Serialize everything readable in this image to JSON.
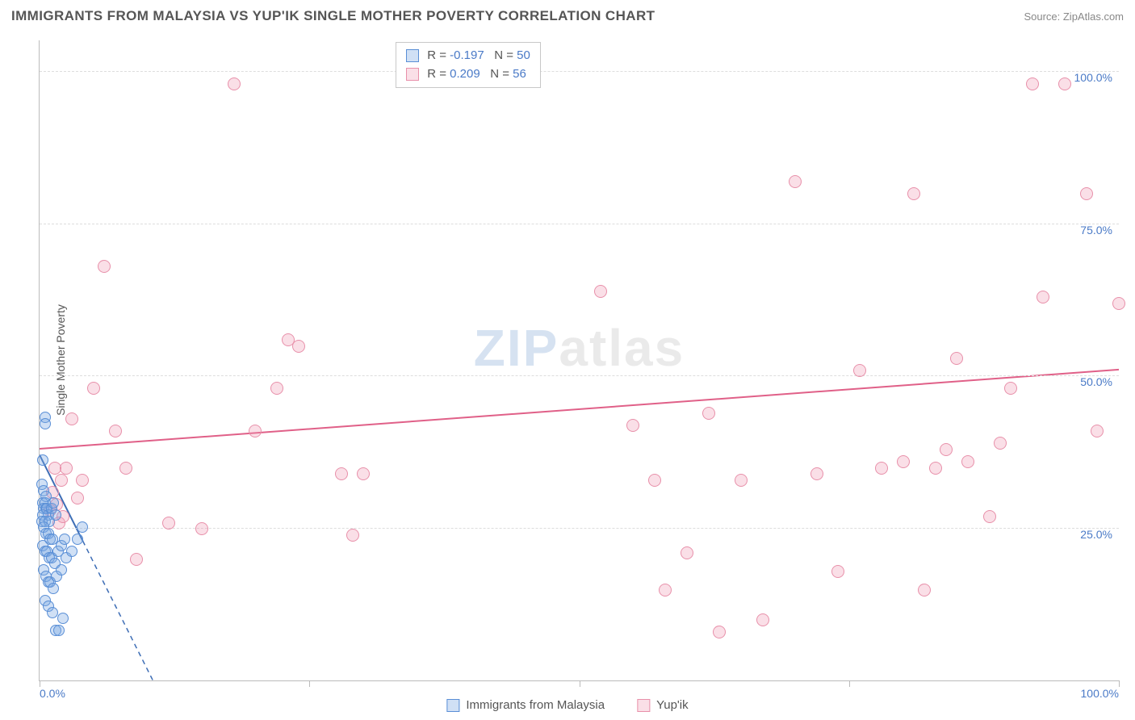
{
  "header": {
    "title": "IMMIGRANTS FROM MALAYSIA VS YUP'IK SINGLE MOTHER POVERTY CORRELATION CHART",
    "source": "Source: ZipAtlas.com"
  },
  "ylabel": "Single Mother Poverty",
  "watermark": {
    "part1": "ZIP",
    "part2": "atlas"
  },
  "axes": {
    "xlim": [
      0,
      100
    ],
    "ylim": [
      0,
      105
    ],
    "xtick_positions": [
      0,
      25,
      50,
      75,
      100
    ],
    "xtick_labels_shown": {
      "0": "0.0%",
      "100": "100.0%"
    },
    "ytick_positions": [
      25,
      50,
      75,
      100
    ],
    "ytick_labels": [
      "25.0%",
      "50.0%",
      "75.0%",
      "100.0%"
    ],
    "grid_color": "#dddddd",
    "axis_color": "#bbbbbb"
  },
  "series": {
    "malaysia": {
      "label": "Immigrants from Malaysia",
      "fill_color": "rgba(120,165,225,0.35)",
      "stroke_color": "#5a8fd6",
      "marker_radius": 7,
      "R": "-0.197",
      "N": "50",
      "trend": {
        "x1": 0,
        "y1": 37,
        "x2": 10.5,
        "y2": 0,
        "color": "#3d6db5",
        "width": 2,
        "dash_extension": true
      },
      "points": [
        [
          0.5,
          45
        ],
        [
          0.5,
          44
        ],
        [
          0.3,
          38
        ],
        [
          0.2,
          34
        ],
        [
          0.4,
          33
        ],
        [
          0.6,
          32
        ],
        [
          0.3,
          31
        ],
        [
          0.5,
          31
        ],
        [
          0.4,
          30
        ],
        [
          0.6,
          30
        ],
        [
          0.7,
          30
        ],
        [
          0.8,
          29
        ],
        [
          0.3,
          29
        ],
        [
          0.2,
          28
        ],
        [
          0.5,
          28
        ],
        [
          0.9,
          28
        ],
        [
          1.1,
          30
        ],
        [
          1.3,
          31
        ],
        [
          1.5,
          29
        ],
        [
          0.4,
          27
        ],
        [
          0.6,
          26
        ],
        [
          0.8,
          26
        ],
        [
          1.0,
          25
        ],
        [
          1.2,
          25
        ],
        [
          0.3,
          24
        ],
        [
          0.5,
          23
        ],
        [
          0.7,
          23
        ],
        [
          0.9,
          22
        ],
        [
          1.1,
          22
        ],
        [
          1.4,
          21
        ],
        [
          1.7,
          23
        ],
        [
          2.0,
          24
        ],
        [
          2.3,
          25
        ],
        [
          0.4,
          20
        ],
        [
          0.6,
          19
        ],
        [
          0.8,
          18
        ],
        [
          1.0,
          18
        ],
        [
          1.3,
          17
        ],
        [
          1.6,
          19
        ],
        [
          2.0,
          20
        ],
        [
          2.5,
          22
        ],
        [
          3.0,
          23
        ],
        [
          3.5,
          25
        ],
        [
          4.0,
          27
        ],
        [
          0.5,
          15
        ],
        [
          0.8,
          14
        ],
        [
          1.2,
          13
        ],
        [
          1.5,
          10
        ],
        [
          1.8,
          10
        ],
        [
          2.2,
          12
        ]
      ]
    },
    "yupik": {
      "label": "Yup'ik",
      "fill_color": "rgba(240,150,175,0.30)",
      "stroke_color": "#e890aa",
      "marker_radius": 8,
      "R": "0.209",
      "N": "56",
      "trend": {
        "x1": 0,
        "y1": 38,
        "x2": 100,
        "y2": 51,
        "color": "#e06088",
        "width": 2
      },
      "points": [
        [
          1.0,
          30
        ],
        [
          1.2,
          33
        ],
        [
          1.4,
          37
        ],
        [
          1.6,
          31
        ],
        [
          1.8,
          28
        ],
        [
          2.0,
          35
        ],
        [
          2.2,
          29
        ],
        [
          2.5,
          37
        ],
        [
          3.0,
          45
        ],
        [
          3.5,
          32
        ],
        [
          4.0,
          35
        ],
        [
          5.0,
          50
        ],
        [
          6.0,
          70
        ],
        [
          7.0,
          43
        ],
        [
          8.0,
          37
        ],
        [
          9.0,
          22
        ],
        [
          12.0,
          28
        ],
        [
          15.0,
          27
        ],
        [
          18.0,
          100
        ],
        [
          20.0,
          43
        ],
        [
          22.0,
          50
        ],
        [
          23.0,
          58
        ],
        [
          24.0,
          57
        ],
        [
          28.0,
          36
        ],
        [
          29.0,
          26
        ],
        [
          30.0,
          36
        ],
        [
          52.0,
          66
        ],
        [
          55.0,
          44
        ],
        [
          57.0,
          35
        ],
        [
          58.0,
          17
        ],
        [
          60.0,
          23
        ],
        [
          62.0,
          46
        ],
        [
          63.0,
          10
        ],
        [
          65.0,
          35
        ],
        [
          67.0,
          12
        ],
        [
          70.0,
          84
        ],
        [
          72.0,
          36
        ],
        [
          74.0,
          20
        ],
        [
          76.0,
          53
        ],
        [
          78.0,
          37
        ],
        [
          80.0,
          38
        ],
        [
          81.0,
          82
        ],
        [
          82.0,
          17
        ],
        [
          83.0,
          37
        ],
        [
          84.0,
          40
        ],
        [
          85.0,
          55
        ],
        [
          86.0,
          38
        ],
        [
          88.0,
          29
        ],
        [
          89.0,
          41
        ],
        [
          90.0,
          50
        ],
        [
          92.0,
          100
        ],
        [
          93.0,
          65
        ],
        [
          95.0,
          100
        ],
        [
          97.0,
          82
        ],
        [
          98.0,
          43
        ],
        [
          100.0,
          64
        ]
      ]
    }
  },
  "legend_top": {
    "R_label": "R =",
    "N_label": "N ="
  },
  "colors": {
    "text_value": "#4a7ac7",
    "text_body": "#555555"
  }
}
